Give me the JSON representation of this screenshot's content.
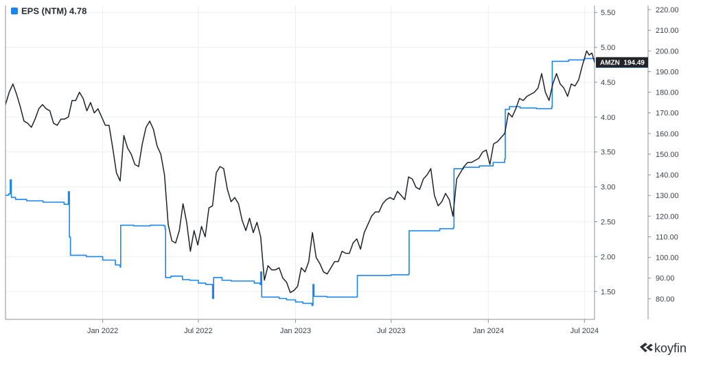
{
  "legend": {
    "label": "EPS (NTM) 4.78",
    "color": "#1a84f0"
  },
  "colors": {
    "eps": "#1a84f0",
    "price": "#1f2126",
    "grid": "#eceef1",
    "axis": "#8c9096",
    "tick_text": "#3b3f45"
  },
  "branding": {
    "logo_text": "koyfin",
    "logo_icon": "koyfin-logo-icon"
  },
  "chart_data": {
    "type": "line",
    "x_ticks": [
      "Jan 2022",
      "Jul 2022",
      "Jan 2023",
      "Jul 2023",
      "Jan 2024",
      "Jul 2024"
    ],
    "x_range": [
      "2021-07-01",
      "2024-07-20"
    ],
    "left_axis": {
      "name": "EPS (NTM)",
      "range": [
        1.1,
        5.6
      ],
      "ticks": [
        "1.50",
        "2.00",
        "2.50",
        "3.00",
        "3.50",
        "4.00",
        "4.50",
        "5.00",
        "5.50"
      ]
    },
    "right_axis": {
      "name": "AMZN",
      "range": [
        70,
        222
      ],
      "ticks": [
        "80.00",
        "90.00",
        "100.00",
        "110.00",
        "120.00",
        "130.00",
        "140.00",
        "150.00",
        "160.00",
        "170.00",
        "180.00",
        "190.00",
        "200.00",
        "210.00",
        "220.00"
      ]
    },
    "grid": true,
    "markers": [
      {
        "series": "EPS (NTM)",
        "label": "EPS (NTM)",
        "value": "4.78",
        "color": "#1a84f0"
      },
      {
        "series": "AMZN",
        "label": "AMZN",
        "value": "194.49",
        "color": "#222428"
      }
    ],
    "series": [
      {
        "name": "EPS (NTM)",
        "axis": "left",
        "color": "#1a84f0",
        "shape": "step",
        "points": [
          [
            "2021-07-01",
            2.88
          ],
          [
            "2021-07-07",
            2.9
          ],
          [
            "2021-07-10",
            3.1
          ],
          [
            "2021-07-12",
            2.85
          ],
          [
            "2021-07-20",
            2.82
          ],
          [
            "2021-08-10",
            2.8
          ],
          [
            "2021-09-10",
            2.78
          ],
          [
            "2021-10-20",
            2.75
          ],
          [
            "2021-10-28",
            2.93
          ],
          [
            "2021-10-30",
            2.28
          ],
          [
            "2021-11-01",
            2.02
          ],
          [
            "2021-12-01",
            2.0
          ],
          [
            "2022-01-01",
            1.95
          ],
          [
            "2022-01-25",
            1.88
          ],
          [
            "2022-02-03",
            1.85
          ],
          [
            "2022-02-04",
            2.45
          ],
          [
            "2022-03-01",
            2.44
          ],
          [
            "2022-04-01",
            2.45
          ],
          [
            "2022-04-27",
            2.44
          ],
          [
            "2022-04-29",
            2.4
          ],
          [
            "2022-04-30",
            1.7
          ],
          [
            "2022-05-10",
            1.72
          ],
          [
            "2022-05-25",
            1.72
          ],
          [
            "2022-06-01",
            1.67
          ],
          [
            "2022-06-15",
            1.66
          ],
          [
            "2022-07-01",
            1.62
          ],
          [
            "2022-07-15",
            1.6
          ],
          [
            "2022-07-28",
            1.4
          ],
          [
            "2022-07-30",
            1.7
          ],
          [
            "2022-08-15",
            1.66
          ],
          [
            "2022-09-01",
            1.65
          ],
          [
            "2022-10-01",
            1.65
          ],
          [
            "2022-10-15",
            1.62
          ],
          [
            "2022-10-26",
            1.6
          ],
          [
            "2022-10-27",
            1.78
          ],
          [
            "2022-10-29",
            1.42
          ],
          [
            "2022-11-15",
            1.42
          ],
          [
            "2022-12-01",
            1.4
          ],
          [
            "2022-12-15",
            1.38
          ],
          [
            "2023-01-01",
            1.35
          ],
          [
            "2023-01-15",
            1.33
          ],
          [
            "2023-02-01",
            1.3
          ],
          [
            "2023-02-03",
            1.6
          ],
          [
            "2023-02-05",
            1.43
          ],
          [
            "2023-03-01",
            1.42
          ],
          [
            "2023-04-01",
            1.42
          ],
          [
            "2023-04-27",
            1.42
          ],
          [
            "2023-04-28",
            1.73
          ],
          [
            "2023-06-01",
            1.73
          ],
          [
            "2023-07-01",
            1.74
          ],
          [
            "2023-08-03",
            1.75
          ],
          [
            "2023-08-04",
            2.37
          ],
          [
            "2023-09-01",
            2.37
          ],
          [
            "2023-10-01",
            2.4
          ],
          [
            "2023-10-27",
            2.42
          ],
          [
            "2023-10-28",
            3.26
          ],
          [
            "2023-11-15",
            3.28
          ],
          [
            "2023-12-15",
            3.3
          ],
          [
            "2024-01-10",
            3.35
          ],
          [
            "2024-02-01",
            3.4
          ],
          [
            "2024-02-02",
            4.11
          ],
          [
            "2024-02-10",
            4.15
          ],
          [
            "2024-03-01",
            4.13
          ],
          [
            "2024-04-01",
            4.12
          ],
          [
            "2024-04-30",
            4.15
          ],
          [
            "2024-05-01",
            4.8
          ],
          [
            "2024-06-01",
            4.82
          ],
          [
            "2024-07-01",
            4.84
          ],
          [
            "2024-07-20",
            4.78
          ]
        ]
      },
      {
        "name": "AMZN",
        "axis": "right",
        "color": "#1f2126",
        "shape": "line",
        "points": [
          [
            "2021-07-01",
            174
          ],
          [
            "2021-07-08",
            180
          ],
          [
            "2021-07-15",
            184
          ],
          [
            "2021-07-22",
            179
          ],
          [
            "2021-07-29",
            173
          ],
          [
            "2021-08-05",
            166
          ],
          [
            "2021-08-12",
            165
          ],
          [
            "2021-08-19",
            163
          ],
          [
            "2021-08-26",
            167
          ],
          [
            "2021-09-02",
            172
          ],
          [
            "2021-09-09",
            174
          ],
          [
            "2021-09-16",
            172
          ],
          [
            "2021-09-23",
            171
          ],
          [
            "2021-09-30",
            165
          ],
          [
            "2021-10-07",
            164
          ],
          [
            "2021-10-14",
            167
          ],
          [
            "2021-10-21",
            167
          ],
          [
            "2021-10-28",
            168
          ],
          [
            "2021-11-04",
            176
          ],
          [
            "2021-11-11",
            176
          ],
          [
            "2021-11-18",
            180
          ],
          [
            "2021-11-25",
            177
          ],
          [
            "2021-12-02",
            171
          ],
          [
            "2021-12-09",
            175
          ],
          [
            "2021-12-16",
            170
          ],
          [
            "2021-12-23",
            172
          ],
          [
            "2021-12-30",
            168
          ],
          [
            "2022-01-06",
            164
          ],
          [
            "2022-01-13",
            164
          ],
          [
            "2022-01-20",
            153
          ],
          [
            "2022-01-27",
            141
          ],
          [
            "2022-02-03",
            137
          ],
          [
            "2022-02-10",
            159
          ],
          [
            "2022-02-17",
            153
          ],
          [
            "2022-02-24",
            150
          ],
          [
            "2022-03-03",
            145
          ],
          [
            "2022-03-10",
            144
          ],
          [
            "2022-03-17",
            155
          ],
          [
            "2022-03-24",
            163
          ],
          [
            "2022-03-31",
            166
          ],
          [
            "2022-04-07",
            162
          ],
          [
            "2022-04-14",
            154
          ],
          [
            "2022-04-21",
            150
          ],
          [
            "2022-04-28",
            140
          ],
          [
            "2022-05-05",
            116
          ],
          [
            "2022-05-12",
            108
          ],
          [
            "2022-05-19",
            107
          ],
          [
            "2022-05-26",
            113
          ],
          [
            "2022-06-02",
            126
          ],
          [
            "2022-06-09",
            117
          ],
          [
            "2022-06-16",
            103
          ],
          [
            "2022-06-23",
            113
          ],
          [
            "2022-06-30",
            106
          ],
          [
            "2022-07-07",
            115
          ],
          [
            "2022-07-14",
            110
          ],
          [
            "2022-07-21",
            124
          ],
          [
            "2022-07-28",
            125
          ],
          [
            "2022-08-04",
            141
          ],
          [
            "2022-08-11",
            144
          ],
          [
            "2022-08-18",
            143
          ],
          [
            "2022-08-25",
            133
          ],
          [
            "2022-09-01",
            127
          ],
          [
            "2022-09-08",
            129
          ],
          [
            "2022-09-15",
            126
          ],
          [
            "2022-09-22",
            118
          ],
          [
            "2022-09-29",
            113
          ],
          [
            "2022-10-06",
            119
          ],
          [
            "2022-10-13",
            112
          ],
          [
            "2022-10-20",
            117
          ],
          [
            "2022-10-27",
            110
          ],
          [
            "2022-11-03",
            89
          ],
          [
            "2022-11-10",
            96
          ],
          [
            "2022-11-17",
            94
          ],
          [
            "2022-11-24",
            94
          ],
          [
            "2022-12-01",
            95
          ],
          [
            "2022-12-08",
            90
          ],
          [
            "2022-12-15",
            88
          ],
          [
            "2022-12-22",
            83
          ],
          [
            "2022-12-29",
            84
          ],
          [
            "2023-01-05",
            86
          ],
          [
            "2023-01-12",
            95
          ],
          [
            "2023-01-19",
            93
          ],
          [
            "2023-01-26",
            98
          ],
          [
            "2023-02-02",
            112
          ],
          [
            "2023-02-09",
            100
          ],
          [
            "2023-02-16",
            97
          ],
          [
            "2023-02-23",
            93
          ],
          [
            "2023-03-02",
            92
          ],
          [
            "2023-03-09",
            95
          ],
          [
            "2023-03-16",
            98
          ],
          [
            "2023-03-23",
            98
          ],
          [
            "2023-03-30",
            103
          ],
          [
            "2023-04-06",
            102
          ],
          [
            "2023-04-13",
            102
          ],
          [
            "2023-04-20",
            107
          ],
          [
            "2023-04-27",
            109
          ],
          [
            "2023-05-04",
            104
          ],
          [
            "2023-05-11",
            112
          ],
          [
            "2023-05-18",
            116
          ],
          [
            "2023-05-25",
            120
          ],
          [
            "2023-06-01",
            122
          ],
          [
            "2023-06-08",
            122
          ],
          [
            "2023-06-15",
            126
          ],
          [
            "2023-06-22",
            128
          ],
          [
            "2023-06-29",
            129
          ],
          [
            "2023-07-06",
            128
          ],
          [
            "2023-07-13",
            132
          ],
          [
            "2023-07-20",
            130
          ],
          [
            "2023-07-27",
            128
          ],
          [
            "2023-08-03",
            139
          ],
          [
            "2023-08-10",
            138
          ],
          [
            "2023-08-17",
            134
          ],
          [
            "2023-08-24",
            133
          ],
          [
            "2023-08-31",
            138
          ],
          [
            "2023-09-07",
            140
          ],
          [
            "2023-09-14",
            143
          ],
          [
            "2023-09-21",
            130
          ],
          [
            "2023-09-28",
            125
          ],
          [
            "2023-10-05",
            127
          ],
          [
            "2023-10-12",
            131
          ],
          [
            "2023-10-19",
            128
          ],
          [
            "2023-10-26",
            120
          ],
          [
            "2023-11-02",
            138
          ],
          [
            "2023-11-09",
            141
          ],
          [
            "2023-11-16",
            144
          ],
          [
            "2023-11-23",
            146
          ],
          [
            "2023-11-30",
            146
          ],
          [
            "2023-12-07",
            147
          ],
          [
            "2023-12-14",
            148
          ],
          [
            "2023-12-21",
            151
          ],
          [
            "2023-12-28",
            152
          ],
          [
            "2024-01-04",
            145
          ],
          [
            "2024-01-11",
            155
          ],
          [
            "2024-01-18",
            156
          ],
          [
            "2024-01-25",
            158
          ],
          [
            "2024-02-01",
            160
          ],
          [
            "2024-02-08",
            170
          ],
          [
            "2024-02-15",
            168
          ],
          [
            "2024-02-22",
            172
          ],
          [
            "2024-02-29",
            177
          ],
          [
            "2024-03-07",
            176
          ],
          [
            "2024-03-14",
            178
          ],
          [
            "2024-03-21",
            179
          ],
          [
            "2024-03-28",
            180
          ],
          [
            "2024-04-04",
            182
          ],
          [
            "2024-04-11",
            189
          ],
          [
            "2024-04-18",
            180
          ],
          [
            "2024-04-25",
            176
          ],
          [
            "2024-05-02",
            184
          ],
          [
            "2024-05-09",
            189
          ],
          [
            "2024-05-16",
            184
          ],
          [
            "2024-05-23",
            182
          ],
          [
            "2024-05-30",
            178
          ],
          [
            "2024-06-06",
            184
          ],
          [
            "2024-06-13",
            183
          ],
          [
            "2024-06-20",
            186
          ],
          [
            "2024-06-27",
            193
          ],
          [
            "2024-07-05",
            200
          ],
          [
            "2024-07-10",
            198
          ],
          [
            "2024-07-15",
            199
          ],
          [
            "2024-07-20",
            194.49
          ]
        ]
      }
    ]
  }
}
